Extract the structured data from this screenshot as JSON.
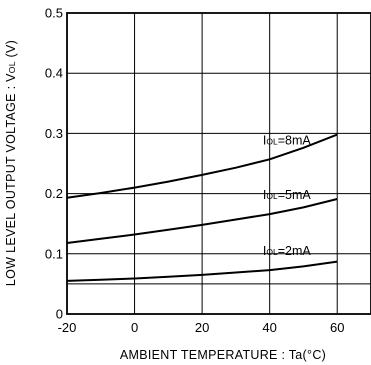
{
  "chart_data": {
    "type": "line",
    "xlabel": "AMBIENT  TEMPERATURE : Ta(°C)",
    "ylabel": {
      "prefix": "LOW  LEVEL  OUTPUT  VOLTAGE : V",
      "sub": "OL",
      "suffix": " (V)"
    },
    "xlim": [
      -20,
      70
    ],
    "ylim": [
      0,
      0.5
    ],
    "x_ticks": [
      -20,
      0,
      20,
      40,
      60
    ],
    "x_tick_labels": [
      "-20",
      "0",
      "20",
      "40",
      "60"
    ],
    "y_ticks": [
      0,
      0.1,
      0.2,
      0.3,
      0.4,
      0.5
    ],
    "y_tick_labels": [
      "0",
      "0.1",
      "0.2",
      "0.3",
      "0.4",
      "0.5"
    ],
    "grid": true,
    "series": [
      {
        "name": {
          "main": "I",
          "sub": "OL",
          "rest": "=8mA"
        },
        "x": [
          -20,
          -10,
          0,
          10,
          20,
          30,
          40,
          50,
          60
        ],
        "y": [
          0.193,
          0.201,
          0.21,
          0.22,
          0.231,
          0.243,
          0.257,
          0.276,
          0.298
        ]
      },
      {
        "name": {
          "main": "I",
          "sub": "OL",
          "rest": "=5mA"
        },
        "x": [
          -20,
          -10,
          0,
          10,
          20,
          30,
          40,
          50,
          60
        ],
        "y": [
          0.118,
          0.125,
          0.132,
          0.14,
          0.148,
          0.157,
          0.166,
          0.177,
          0.191
        ]
      },
      {
        "name": {
          "main": "I",
          "sub": "OL",
          "rest": "=2mA"
        },
        "x": [
          -20,
          -10,
          0,
          10,
          20,
          30,
          40,
          50,
          60
        ],
        "y": [
          0.055,
          0.057,
          0.059,
          0.062,
          0.065,
          0.069,
          0.073,
          0.079,
          0.087
        ]
      }
    ],
    "extra_gridline_y": 0.05
  }
}
